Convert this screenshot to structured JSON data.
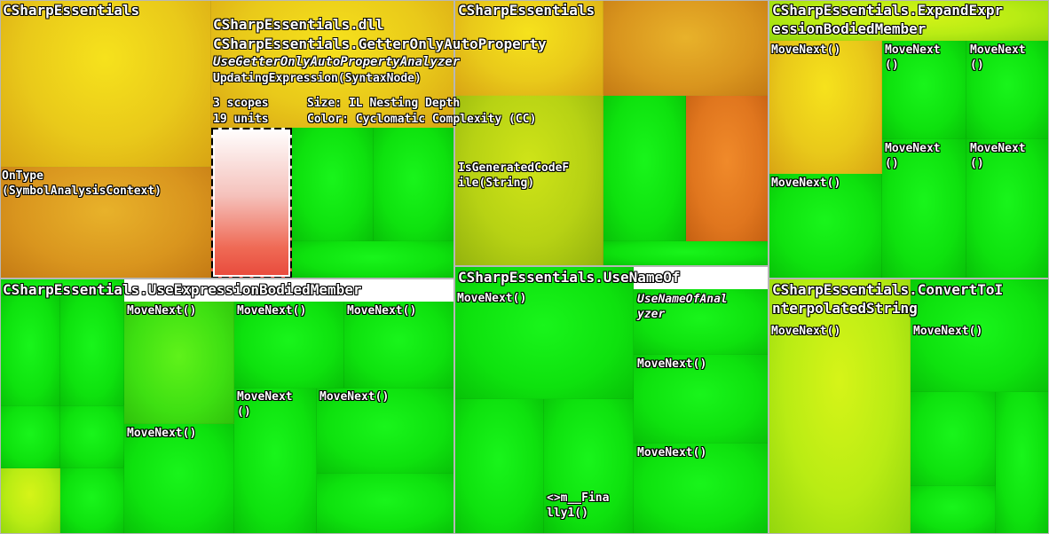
{
  "regions": {
    "r1": {
      "title": "CSharpEssentials",
      "members": {
        "ontype": "OnType\n(SymbolAnalysisContext)"
      }
    },
    "r2": {
      "title": "CSharpEssentials",
      "members": {
        "isgen": "IsGeneratedCodeF\nile(String)"
      }
    },
    "r3": {
      "title": "CSharpEssentials.ExpandExpr\nessionBodiedMember",
      "members": [
        "MoveNext()",
        "MoveNext\n()",
        "MoveNext\n()",
        "MoveNext\n()",
        "MoveNext\n()",
        "MoveNext()"
      ]
    },
    "r4": {
      "title": "CSharpEssentials.UseExpressionBodiedMember",
      "members": [
        "MoveNext()",
        "MoveNext()",
        "MoveNext()",
        "MoveNext\n()",
        "MoveNext()",
        "MoveNext()"
      ]
    },
    "r5": {
      "title": "CSharpEssentials.UseNameOf",
      "members": [
        "MoveNext()",
        "UseNameOfAnal\nyzer",
        "MoveNext()",
        "MoveNext()",
        "<>m__Fina\nlly1()"
      ]
    },
    "r6": {
      "title": "CSharpEssentials.ConvertToI\nnterpolatedString",
      "members": [
        "MoveNext()",
        "MoveNext()"
      ]
    }
  },
  "tooltip": {
    "assembly": "CSharpEssentials.dll",
    "type": "CSharpEssentials.GetterOnlyAutoProperty",
    "class": "UseGetterOnlyAutoPropertyAnalyzer",
    "method": "UpdatingExpression(SyntaxNode)",
    "scopes": "3 scopes",
    "units": "19 units",
    "size_metric": "Size: IL Nesting Depth",
    "color_metric": "Color: Cyclomatic Complexity (CC)"
  }
}
